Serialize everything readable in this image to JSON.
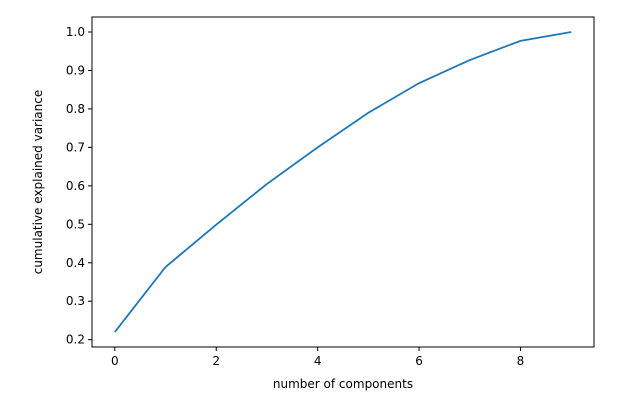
{
  "chart_data": {
    "type": "line",
    "x_label": "number of components",
    "y_label": "cumulative explained variance",
    "x": [
      0,
      1,
      2,
      3,
      4,
      5,
      6,
      7,
      8,
      9
    ],
    "series": [
      {
        "color": "#1f77b4",
        "values": [
          0.22,
          0.389,
          0.499,
          0.605,
          0.7,
          0.79,
          0.867,
          0.927,
          0.977,
          1.0
        ]
      }
    ],
    "xlim": [
      -0.45,
      9.45
    ],
    "xticks": [
      0,
      2,
      4,
      6,
      8
    ],
    "ylim": [
      0.181,
      1.039
    ],
    "yticks": [
      0.2,
      0.3,
      0.4,
      0.5,
      0.6,
      0.7,
      0.8,
      0.9,
      {
        "value": 1.0,
        "label": "1.0"
      }
    ]
  }
}
